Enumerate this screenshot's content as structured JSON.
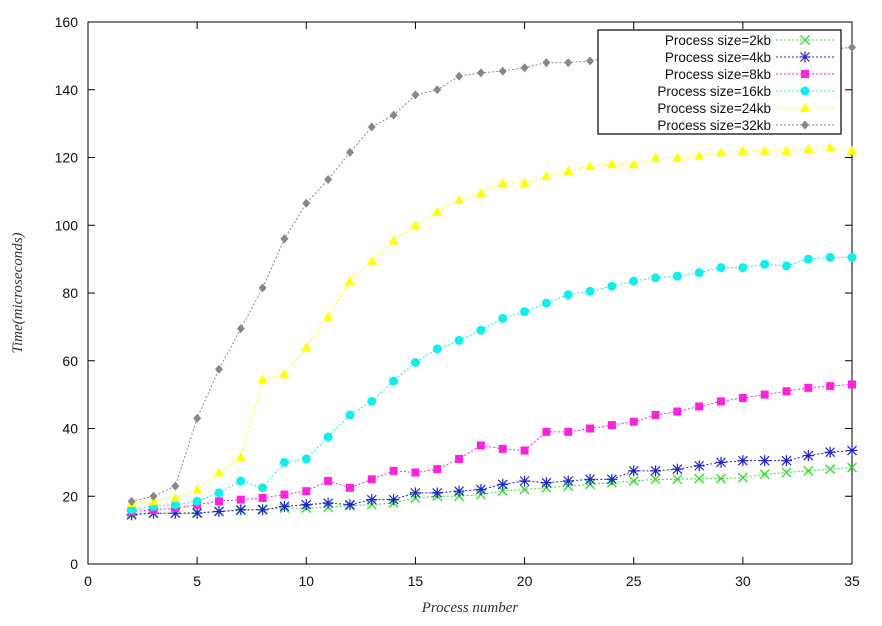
{
  "chart_data": {
    "type": "line",
    "title": "",
    "xlabel": "Process number",
    "ylabel": "Time(microseconds)",
    "xlim": [
      0,
      35
    ],
    "ylim": [
      0,
      160
    ],
    "xticks": [
      0,
      5,
      10,
      15,
      20,
      25,
      30,
      35
    ],
    "yticks": [
      0,
      20,
      40,
      60,
      80,
      100,
      120,
      140,
      160
    ],
    "xtick_labels": [
      "0",
      "5",
      "10",
      "15",
      "20",
      "25",
      "30",
      "35"
    ],
    "ytick_labels": [
      "0",
      "20",
      "40",
      "60",
      "80",
      "100",
      "120",
      "140",
      "160"
    ],
    "grid": false,
    "legend_position": "top-right",
    "x": [
      2,
      3,
      4,
      5,
      6,
      7,
      8,
      9,
      10,
      11,
      12,
      13,
      14,
      15,
      16,
      17,
      18,
      19,
      20,
      21,
      22,
      23,
      24,
      25,
      26,
      27,
      28,
      29,
      30,
      31,
      32,
      33,
      34,
      35
    ],
    "series": [
      {
        "name": "Process size=2kb",
        "color": "#33dd33",
        "marker": "x",
        "values": [
          15.0,
          15.0,
          15.0,
          15.2,
          15.5,
          15.8,
          16.2,
          16.5,
          16.5,
          16.8,
          17.2,
          17.5,
          18.0,
          19.5,
          20.0,
          20.0,
          20.5,
          21.5,
          22.0,
          22.5,
          23.0,
          23.5,
          24.0,
          24.5,
          25.0,
          25.0,
          25.2,
          25.2,
          25.5,
          26.5,
          27.0,
          27.5,
          28.0,
          28.5
        ]
      },
      {
        "name": "Process size=4kb",
        "color": "#2222cc",
        "marker": "star",
        "values": [
          14.5,
          15.0,
          15.0,
          15.0,
          15.5,
          16.0,
          16.0,
          17.0,
          17.5,
          18.0,
          17.5,
          19.0,
          19.0,
          21.0,
          21.0,
          21.5,
          22.0,
          23.5,
          24.5,
          24.0,
          24.5,
          25.0,
          25.0,
          27.5,
          27.5,
          28.0,
          29.0,
          30.0,
          30.5,
          30.5,
          30.5,
          32.0,
          33.0,
          33.5
        ]
      },
      {
        "name": "Process size=8kb",
        "color": "#ff22dd",
        "marker": "square",
        "values": [
          15.5,
          16.0,
          16.5,
          17.5,
          18.5,
          19.0,
          19.5,
          20.5,
          21.5,
          24.5,
          22.5,
          25.0,
          27.5,
          27.0,
          28.0,
          31.0,
          35.0,
          34.0,
          33.5,
          39.0,
          39.0,
          40.0,
          41.0,
          42.0,
          44.0,
          45.0,
          46.5,
          48.0,
          49.0,
          50.0,
          51.0,
          52.0,
          52.5,
          53.0
        ]
      },
      {
        "name": "Process size=16kb",
        "color": "#11eeee",
        "marker": "circle",
        "values": [
          16.0,
          17.0,
          17.5,
          18.5,
          21.0,
          24.5,
          22.5,
          30.0,
          31.0,
          37.5,
          44.0,
          48.0,
          54.0,
          59.5,
          63.5,
          66.0,
          69.0,
          72.5,
          74.5,
          77.0,
          79.5,
          80.5,
          82.0,
          83.5,
          84.5,
          85.0,
          86.0,
          87.5,
          87.5,
          88.5,
          88.0,
          90.0,
          90.5,
          90.5
        ]
      },
      {
        "name": "Process size=24kb",
        "color": "#ffff00",
        "marker": "triangle",
        "values": [
          18.0,
          18.5,
          19.5,
          22.0,
          27.0,
          31.5,
          54.5,
          56.0,
          64.0,
          73.0,
          83.5,
          89.5,
          95.5,
          100.0,
          104.0,
          107.5,
          109.5,
          112.5,
          112.5,
          114.5,
          116.0,
          117.5,
          118.0,
          118.0,
          120.0,
          120.0,
          120.5,
          121.5,
          122.0,
          122.0,
          122.0,
          122.5,
          123.0,
          122.0
        ]
      },
      {
        "name": "Process size=32kb",
        "color": "#888888",
        "marker": "diamond",
        "values": [
          18.5,
          20.0,
          23.0,
          43.0,
          57.5,
          69.5,
          81.5,
          96.0,
          106.5,
          113.5,
          121.5,
          129.0,
          132.5,
          138.5,
          140.0,
          144.0,
          145.0,
          145.5,
          146.5,
          148.0,
          148.0,
          148.5,
          149.5,
          151.5,
          151.0,
          151.0,
          151.5,
          151.0,
          151.0,
          152.0,
          152.5,
          152.0,
          152.0,
          152.5
        ]
      }
    ]
  }
}
